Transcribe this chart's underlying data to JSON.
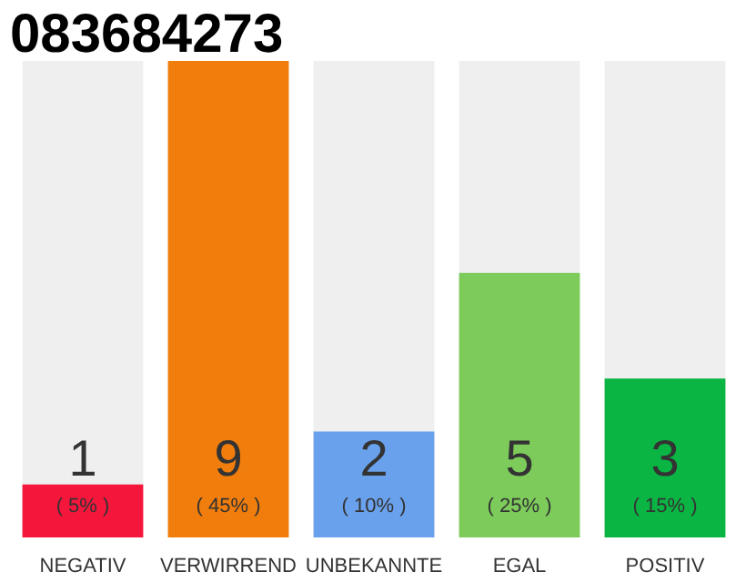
{
  "chart_data": {
    "type": "bar",
    "title": "083684273",
    "categories": [
      "NEGATIV",
      "VERWIRREND",
      "UNBEKANNTE",
      "EGAL",
      "POSITIV"
    ],
    "values": [
      5,
      45,
      10,
      25,
      15
    ],
    "colors": [
      "#f5163b",
      "#f07d0c",
      "#6aa1ec",
      "#7dcb5b",
      "#0ab543"
    ],
    "value_labels": [
      "( 5% )",
      "( 45% )",
      "( 10% )",
      "( 25% )",
      "( 15% )"
    ],
    "annotations": [
      "1",
      "9",
      "2",
      "5",
      "3"
    ],
    "tick_labels": "x",
    "grid": false
  }
}
